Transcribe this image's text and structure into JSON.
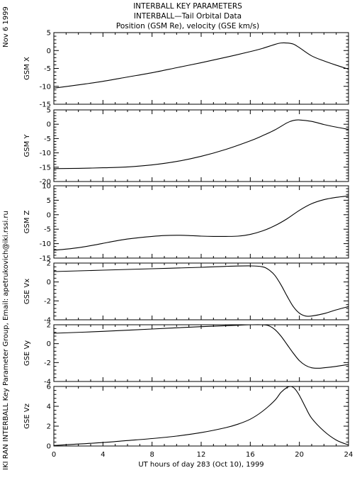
{
  "header": {
    "title_lines": [
      "INTERBALL KEY PARAMETERS",
      "INTERBALL—Tail Orbital Data",
      "Position (GSM Re), velocity (GSE km/s)"
    ],
    "date": "Nov  6 1999",
    "credit": "IKI RAN INTERBALL Key Parameter Group, Email: apetrukovich@iki.rssi.ru"
  },
  "chart_data": {
    "type": "line",
    "xlabel": "UT hours of day 283 (Oct 10), 1999",
    "xlim": [
      0,
      24
    ],
    "xticks": [
      0,
      4,
      8,
      12,
      16,
      20,
      24
    ],
    "xminor": [
      1,
      2,
      3,
      5,
      6,
      7,
      9,
      10,
      11,
      13,
      14,
      15,
      17,
      18,
      19,
      21,
      22,
      23
    ],
    "panels": [
      {
        "ylabel": "GSM X",
        "ylim": [
          -15,
          5
        ],
        "yticks": [
          -15,
          -10,
          -5,
          0,
          5
        ],
        "x": [
          0,
          2,
          4,
          6,
          8,
          10,
          12,
          14,
          16,
          17,
          18,
          18.5,
          19,
          19.5,
          20,
          21,
          22,
          23,
          24
        ],
        "y": [
          -10.5,
          -9.6,
          -8.6,
          -7.4,
          -6.2,
          -4.8,
          -3.4,
          -1.9,
          -0.3,
          0.6,
          1.7,
          2.1,
          2.1,
          1.8,
          0.8,
          -1.5,
          -2.9,
          -4.1,
          -5.2
        ]
      },
      {
        "ylabel": "GSM Y",
        "ylim": [
          -20,
          5
        ],
        "yticks": [
          -20,
          -15,
          -10,
          -5,
          0,
          5
        ],
        "x": [
          0,
          2,
          4,
          6,
          8,
          10,
          12,
          14,
          16,
          17,
          18,
          19,
          19.5,
          20,
          21,
          22,
          23,
          24
        ],
        "y": [
          -15.5,
          -15.4,
          -15.2,
          -14.9,
          -14.2,
          -13.0,
          -11.2,
          -8.8,
          -5.8,
          -4.0,
          -2.0,
          0.5,
          1.3,
          1.5,
          1.0,
          -0.1,
          -1.0,
          -1.8
        ]
      },
      {
        "ylabel": "GSM Z",
        "ylim": [
          -15,
          10
        ],
        "yticks": [
          -15,
          -10,
          -5,
          0,
          5,
          10
        ],
        "x": [
          0,
          1,
          2,
          3,
          4,
          5,
          6,
          7,
          8,
          9,
          10,
          11,
          12,
          13,
          14,
          15,
          16,
          17,
          18,
          19,
          20,
          21,
          22,
          23,
          24
        ],
        "y": [
          -12.3,
          -11.9,
          -11.4,
          -10.7,
          -9.9,
          -9.1,
          -8.4,
          -7.9,
          -7.5,
          -7.2,
          -7.1,
          -7.2,
          -7.4,
          -7.5,
          -7.5,
          -7.4,
          -6.8,
          -5.6,
          -3.8,
          -1.4,
          1.5,
          3.8,
          5.2,
          6.0,
          6.5
        ]
      },
      {
        "ylabel": "GSE Vx",
        "ylim": [
          -4,
          2
        ],
        "yticks": [
          -4,
          -2,
          0,
          2
        ],
        "x": [
          0,
          4,
          8,
          12,
          14,
          16,
          17,
          17.5,
          18,
          18.5,
          19,
          19.5,
          20,
          20.5,
          21,
          22,
          23,
          24
        ],
        "y": [
          1.1,
          1.25,
          1.4,
          1.55,
          1.65,
          1.7,
          1.6,
          1.3,
          0.7,
          -0.3,
          -1.5,
          -2.6,
          -3.3,
          -3.6,
          -3.6,
          -3.35,
          -2.95,
          -2.6
        ]
      },
      {
        "ylabel": "GSE Vy",
        "ylim": [
          -4,
          2
        ],
        "yticks": [
          -4,
          -2,
          0,
          2
        ],
        "x": [
          0,
          4,
          8,
          12,
          15,
          16,
          17,
          17.5,
          18,
          18.5,
          19,
          19.5,
          20,
          20.5,
          21,
          21.5,
          22,
          23,
          24
        ],
        "y": [
          1.1,
          1.3,
          1.55,
          1.8,
          1.95,
          2.0,
          2.0,
          1.9,
          1.5,
          0.8,
          -0.1,
          -1.0,
          -1.8,
          -2.3,
          -2.55,
          -2.6,
          -2.55,
          -2.4,
          -2.2
        ]
      },
      {
        "ylabel": "GSE Vz",
        "ylim": [
          0,
          6
        ],
        "yticks": [
          0,
          2,
          4,
          6
        ],
        "x": [
          0,
          2,
          4,
          6,
          8,
          10,
          12,
          14,
          15,
          16,
          17,
          18,
          18.5,
          19,
          19.3,
          19.6,
          20,
          20.5,
          21,
          22,
          23,
          24
        ],
        "y": [
          0.05,
          0.2,
          0.35,
          0.55,
          0.75,
          1.0,
          1.35,
          1.85,
          2.2,
          2.7,
          3.5,
          4.6,
          5.4,
          5.9,
          6.0,
          5.8,
          5.1,
          3.9,
          2.8,
          1.5,
          0.6,
          0.1
        ]
      }
    ]
  }
}
